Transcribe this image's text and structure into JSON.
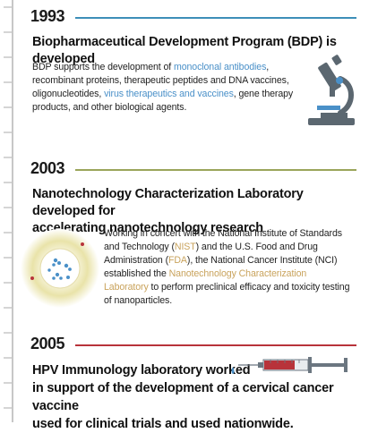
{
  "colors": {
    "teal": "#3d8fb8",
    "olive": "#9aa55a",
    "red": "#b8333a",
    "spine": "#c7c7c7"
  },
  "entries": [
    {
      "year": "1993",
      "headline": "Biopharmaceutical Development Program (BDP) is developed",
      "body": {
        "t1": "BDP supports the development of ",
        "link1": "monoclonal antibodies",
        "t2": ", recombinant proteins, therapeutic peptides and DNA vaccines, oligonucleotides, ",
        "link2": "virus therapeutics and vaccines",
        "t3": ", gene therapy products, and other biological agents."
      },
      "icon": "microscope-icon"
    },
    {
      "year": "2003",
      "headline_line1": "Nanotechnology Characterization Laboratory developed for",
      "headline_line2": "accelerating nanotechnology research",
      "body": {
        "t1": "Working in concert with the National Institute of Standards and Technology (",
        "link1": "NIST",
        "t2": ") and the U.S. Food and Drug Administration (",
        "link2": "FDA",
        "t3": "), the National Cancer Institute (NCI) established the ",
        "link3": "Nanotechnology Characterization Laboratory",
        "t4": " to perform preclinical efficacy and toxicity testing of nanoparticles."
      },
      "icon": "nanoparticle-icon"
    },
    {
      "year": "2005",
      "headline_line1": "HPV Immunology laboratory worked",
      "headline_line2": "in support of the development of a cervical cancer vaccine",
      "headline_line3": "used for clinical trials and used nationwide.",
      "icon": "syringe-icon"
    }
  ]
}
